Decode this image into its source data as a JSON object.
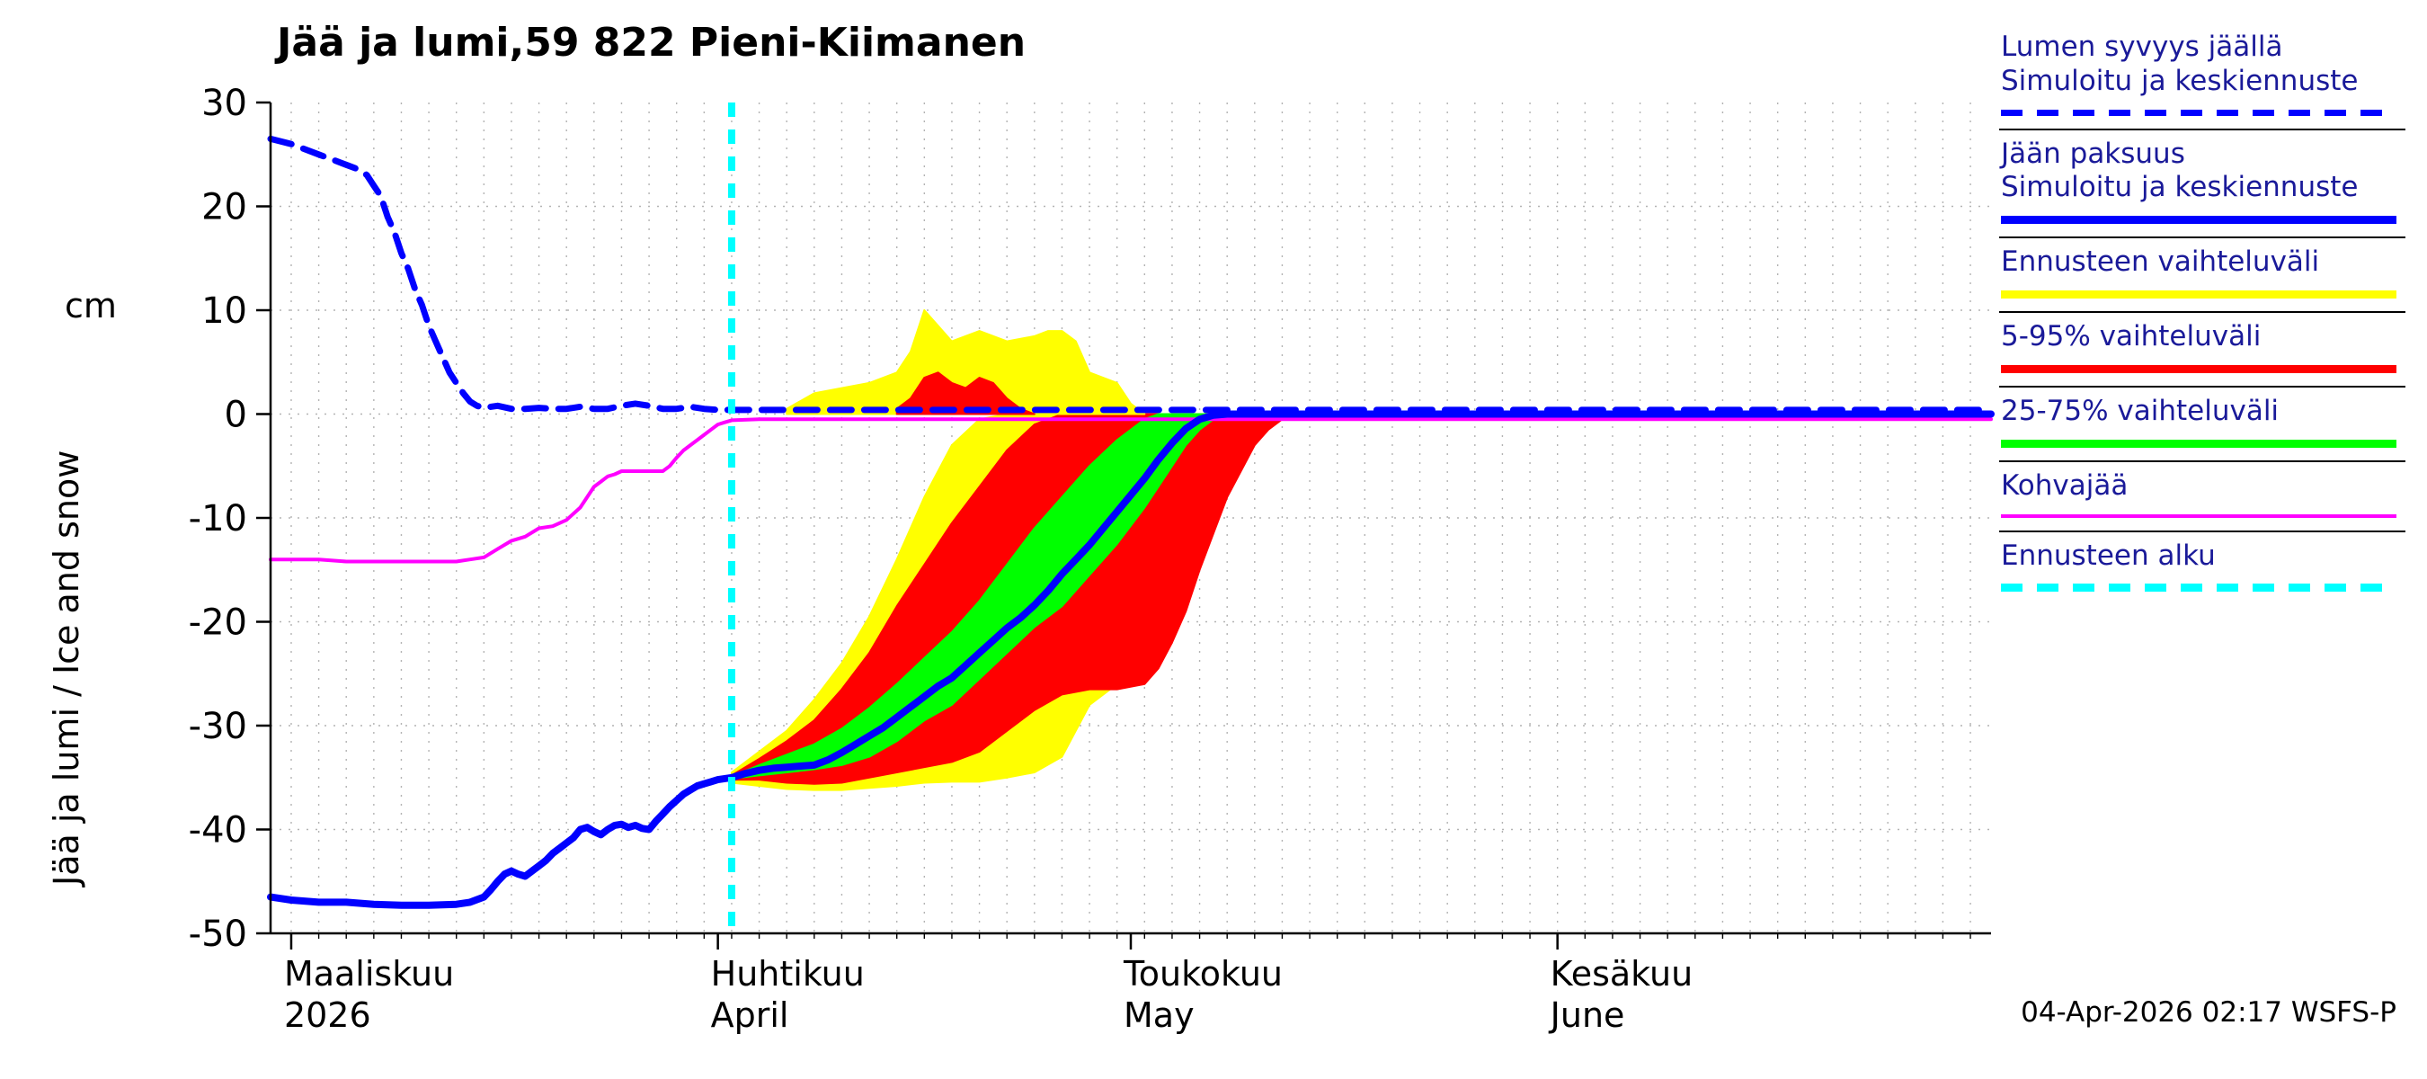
{
  "title": "Jää ja lumi,59 822 Pieni-Kiimanen",
  "timestamp": "04-Apr-2026 02:17 WSFS-P",
  "y_axis": {
    "label": "Jää ja lumi / Ice and snow",
    "unit": "cm",
    "ticks": [
      30,
      20,
      10,
      0,
      -10,
      -20,
      -30,
      -40,
      -50
    ]
  },
  "x_axis": {
    "months": [
      {
        "label": "Maaliskuu",
        "sublabel": "2026",
        "day": 0
      },
      {
        "label": "Huhtikuu",
        "sublabel": "April",
        "day": 31
      },
      {
        "label": "Toukokuu",
        "sublabel": "May",
        "day": 61
      },
      {
        "label": "Kesäkuu",
        "sublabel": "June",
        "day": 92
      }
    ]
  },
  "legend": [
    {
      "lines": [
        "Lumen syvyys jäällä",
        "Simuloitu ja keskiennuste"
      ],
      "color": "#0000ff",
      "style": "dashed",
      "thickness": 7
    },
    {
      "lines": [
        "Jään paksuus",
        "Simuloitu ja keskiennuste"
      ],
      "color": "#0000ff",
      "style": "solid",
      "thickness": 9
    },
    {
      "lines": [
        "Ennusteen vaihteluväli"
      ],
      "color": "#ffff00",
      "style": "solid",
      "thickness": 9
    },
    {
      "lines": [
        "5-95% vaihteluväli"
      ],
      "color": "#ff0000",
      "style": "solid",
      "thickness": 9
    },
    {
      "lines": [
        "25-75% vaihteluväli"
      ],
      "color": "#00ff00",
      "style": "solid",
      "thickness": 9
    },
    {
      "lines": [
        "Kohvajää"
      ],
      "color": "#ff00ff",
      "style": "solid",
      "thickness": 4
    },
    {
      "lines": [
        "Ennusteen alku"
      ],
      "color": "#00ffff",
      "style": "dashed",
      "thickness": 9
    }
  ],
  "colors": {
    "blue": "#0000ff",
    "magenta": "#ff00ff",
    "cyan": "#00ffff",
    "yellow": "#ffff00",
    "red": "#ff0000",
    "green": "#00ff00",
    "grid": "#b3b3b3",
    "axis": "#000000",
    "legend_text": "#1a1a99"
  },
  "chart_data": {
    "type": "line",
    "title": "Jää ja lumi,59 822 Pieni-Kiimanen",
    "ylabel": "Jää ja lumi / Ice and snow (cm)",
    "x_unit": "days from 2026-03-01",
    "x_range": [
      -1.5,
      123.5
    ],
    "y_range": [
      -50,
      30
    ],
    "grid": true,
    "forecast_start_day": 32,
    "series": [
      {
        "name": "snow-depth-on-ice-median",
        "color": "#0000ff",
        "style": "dashed",
        "width": 7,
        "points": [
          [
            -1.5,
            26.5
          ],
          [
            0,
            26
          ],
          [
            1,
            25.5
          ],
          [
            2,
            25
          ],
          [
            3,
            24.5
          ],
          [
            4,
            24
          ],
          [
            5,
            23.5
          ],
          [
            5.5,
            23
          ],
          [
            6,
            22
          ],
          [
            6.5,
            21
          ],
          [
            7,
            19
          ],
          [
            7.5,
            17.5
          ],
          [
            8,
            15.5
          ],
          [
            8.5,
            14
          ],
          [
            9,
            12
          ],
          [
            9.5,
            10.5
          ],
          [
            10,
            8.5
          ],
          [
            10.5,
            7
          ],
          [
            11,
            5.5
          ],
          [
            11.5,
            4
          ],
          [
            12,
            3
          ],
          [
            12.5,
            2
          ],
          [
            13,
            1.2
          ],
          [
            13.5,
            0.8
          ],
          [
            14,
            0.6
          ],
          [
            15,
            0.8
          ],
          [
            16,
            0.5
          ],
          [
            17,
            0.5
          ],
          [
            18,
            0.6
          ],
          [
            19,
            0.5
          ],
          [
            20,
            0.5
          ],
          [
            21,
            0.7
          ],
          [
            22,
            0.5
          ],
          [
            23,
            0.5
          ],
          [
            24,
            0.8
          ],
          [
            25,
            1
          ],
          [
            26,
            0.8
          ],
          [
            27,
            0.5
          ],
          [
            28,
            0.5
          ],
          [
            29,
            0.7
          ],
          [
            30,
            0.5
          ],
          [
            31,
            0.4
          ],
          [
            123.5,
            0.4
          ]
        ]
      },
      {
        "name": "kohvajaa",
        "color": "#ff00ff",
        "style": "solid",
        "width": 4,
        "points": [
          [
            -1.5,
            -14
          ],
          [
            2,
            -14
          ],
          [
            4,
            -14.2
          ],
          [
            8,
            -14.2
          ],
          [
            12,
            -14.2
          ],
          [
            13,
            -14
          ],
          [
            14,
            -13.8
          ],
          [
            15,
            -13
          ],
          [
            16,
            -12.2
          ],
          [
            17,
            -11.8
          ],
          [
            18,
            -11
          ],
          [
            19,
            -10.8
          ],
          [
            20,
            -10.2
          ],
          [
            21,
            -9
          ],
          [
            21.5,
            -8
          ],
          [
            22,
            -7
          ],
          [
            22.5,
            -6.5
          ],
          [
            23,
            -6
          ],
          [
            23.5,
            -5.8
          ],
          [
            24,
            -5.5
          ],
          [
            26,
            -5.5
          ],
          [
            27,
            -5.5
          ],
          [
            27.5,
            -5
          ],
          [
            28,
            -4.2
          ],
          [
            28.5,
            -3.5
          ],
          [
            29,
            -3
          ],
          [
            29.5,
            -2.5
          ],
          [
            30,
            -2
          ],
          [
            30.5,
            -1.5
          ],
          [
            31,
            -1
          ],
          [
            31.5,
            -0.8
          ],
          [
            32,
            -0.6
          ],
          [
            34,
            -0.5
          ],
          [
            123.5,
            -0.5
          ]
        ]
      },
      {
        "name": "ice-thickness-simulated",
        "color": "#0000ff",
        "style": "solid",
        "width": 8,
        "points": [
          [
            -1.5,
            -46.5
          ],
          [
            0,
            -46.8
          ],
          [
            2,
            -47
          ],
          [
            4,
            -47
          ],
          [
            6,
            -47.2
          ],
          [
            8,
            -47.3
          ],
          [
            10,
            -47.3
          ],
          [
            12,
            -47.2
          ],
          [
            13,
            -47
          ],
          [
            14,
            -46.5
          ],
          [
            14.5,
            -45.8
          ],
          [
            15,
            -45
          ],
          [
            15.5,
            -44.3
          ],
          [
            16,
            -44
          ],
          [
            16.5,
            -44.3
          ],
          [
            17,
            -44.5
          ],
          [
            17.5,
            -44
          ],
          [
            18,
            -43.5
          ],
          [
            18.5,
            -43
          ],
          [
            19,
            -42.3
          ],
          [
            19.5,
            -41.8
          ],
          [
            20,
            -41.3
          ],
          [
            20.5,
            -40.8
          ],
          [
            21,
            -40
          ],
          [
            21.5,
            -39.8
          ],
          [
            22,
            -40.2
          ],
          [
            22.5,
            -40.5
          ],
          [
            23,
            -40
          ],
          [
            23.5,
            -39.6
          ],
          [
            24,
            -39.5
          ],
          [
            24.5,
            -39.8
          ],
          [
            25,
            -39.6
          ],
          [
            25.5,
            -39.9
          ],
          [
            26,
            -40
          ],
          [
            26.5,
            -39.2
          ],
          [
            27,
            -38.5
          ],
          [
            27.5,
            -37.8
          ],
          [
            28,
            -37.2
          ],
          [
            28.5,
            -36.6
          ],
          [
            29,
            -36.2
          ],
          [
            29.5,
            -35.8
          ],
          [
            30,
            -35.6
          ],
          [
            30.5,
            -35.4
          ],
          [
            31,
            -35.2
          ],
          [
            32,
            -35
          ]
        ]
      },
      {
        "name": "ice-thickness-forecast-median",
        "color": "#0000ff",
        "style": "solid",
        "width": 8,
        "points": [
          [
            32,
            -35
          ],
          [
            33,
            -34.6
          ],
          [
            34,
            -34.3
          ],
          [
            35,
            -34.1
          ],
          [
            36,
            -34
          ],
          [
            37,
            -33.9
          ],
          [
            38,
            -33.8
          ],
          [
            39,
            -33.3
          ],
          [
            40,
            -32.6
          ],
          [
            41,
            -31.8
          ],
          [
            42,
            -31
          ],
          [
            43,
            -30.2
          ],
          [
            44,
            -29.2
          ],
          [
            45,
            -28.2
          ],
          [
            46,
            -27.2
          ],
          [
            47,
            -26.2
          ],
          [
            48,
            -25.4
          ],
          [
            49,
            -24.2
          ],
          [
            50,
            -23
          ],
          [
            51,
            -21.8
          ],
          [
            52,
            -20.6
          ],
          [
            53,
            -19.6
          ],
          [
            54,
            -18.4
          ],
          [
            55,
            -17
          ],
          [
            56,
            -15.4
          ],
          [
            57,
            -14
          ],
          [
            58,
            -12.6
          ],
          [
            59,
            -11
          ],
          [
            60,
            -9.4
          ],
          [
            61,
            -7.8
          ],
          [
            62,
            -6.2
          ],
          [
            63,
            -4.4
          ],
          [
            64,
            -2.8
          ],
          [
            65,
            -1.4
          ],
          [
            66,
            -0.5
          ],
          [
            67,
            -0.1
          ],
          [
            68,
            0
          ],
          [
            123.5,
            0
          ]
        ]
      }
    ],
    "bands": [
      {
        "name": "forecast-range-ice",
        "color": "#ffff00",
        "x": [
          32,
          34,
          36,
          38,
          40,
          42,
          44,
          46,
          48,
          50,
          52,
          54,
          56,
          58,
          60,
          62,
          63,
          64,
          65,
          66,
          67,
          68,
          69,
          70,
          71,
          72,
          73
        ],
        "upper": [
          -34.5,
          -32.5,
          -30.5,
          -27.5,
          -24,
          -19.5,
          -14,
          -8,
          -3,
          -0.5,
          0,
          0,
          0,
          0,
          0,
          0,
          0,
          0,
          0,
          0,
          0,
          0,
          0,
          0,
          0,
          0,
          0
        ],
        "lower": [
          -35.5,
          -35.8,
          -36.1,
          -36.2,
          -36.2,
          -36,
          -35.8,
          -35.5,
          -35.4,
          -35.4,
          -35,
          -34.5,
          -33,
          -28,
          -26,
          -25,
          -23,
          -20,
          -16,
          -11,
          -6.5,
          -3,
          -1,
          0,
          0,
          0,
          0
        ]
      },
      {
        "name": "p5-95-ice",
        "color": "#ff0000",
        "x": [
          32,
          34,
          36,
          38,
          40,
          42,
          44,
          46,
          48,
          50,
          52,
          54,
          56,
          58,
          60,
          62,
          63,
          64,
          65,
          66,
          67,
          68,
          69,
          70,
          71,
          72,
          73
        ],
        "upper": [
          -34.8,
          -33.2,
          -31.5,
          -29.5,
          -26.5,
          -23,
          -18.5,
          -14.5,
          -10.5,
          -7,
          -3.5,
          -1,
          0,
          0,
          0,
          0,
          0,
          0,
          0,
          0,
          0,
          0,
          0,
          0,
          0,
          0,
          0
        ],
        "lower": [
          -35.2,
          -35.2,
          -35.5,
          -35.6,
          -35.5,
          -35,
          -34.5,
          -34,
          -33.5,
          -32.5,
          -30.5,
          -28.5,
          -27,
          -26.5,
          -26.5,
          -26,
          -24.5,
          -22,
          -19,
          -15,
          -11.5,
          -8,
          -5.5,
          -3,
          -1.5,
          -0.5,
          0
        ]
      },
      {
        "name": "p25-75-ice",
        "color": "#00ff00",
        "x": [
          32,
          34,
          36,
          38,
          40,
          42,
          44,
          46,
          48,
          50,
          52,
          54,
          56,
          58,
          60,
          62,
          63,
          64,
          65,
          66,
          67,
          68,
          69,
          70,
          71,
          72,
          73
        ],
        "upper": [
          -34.9,
          -33.8,
          -32.8,
          -31.8,
          -30.3,
          -28.3,
          -26,
          -23.5,
          -21,
          -18,
          -14.5,
          -11,
          -8,
          -5,
          -2.5,
          -0.5,
          0,
          0,
          0,
          0,
          0,
          0,
          0,
          0,
          0,
          0,
          0
        ],
        "lower": [
          -35.1,
          -34.8,
          -34.5,
          -34.2,
          -33.8,
          -33,
          -31.5,
          -29.5,
          -28,
          -25.5,
          -23,
          -20.5,
          -18.5,
          -15.5,
          -12.5,
          -9,
          -7,
          -5,
          -3,
          -1.5,
          -0.5,
          0,
          0,
          0,
          0,
          0,
          0
        ]
      },
      {
        "name": "forecast-range-snow",
        "color": "#ffff00",
        "x": [
          36,
          38,
          40,
          42,
          44,
          45,
          46,
          47,
          48,
          50,
          52,
          54,
          55,
          56,
          57,
          58,
          60,
          61,
          62
        ],
        "upper": [
          0.5,
          2,
          2.5,
          3,
          4,
          6,
          10,
          8.5,
          7,
          8,
          7,
          7.5,
          8,
          8,
          7,
          4,
          3,
          1,
          0
        ],
        "lower": [
          0,
          0,
          0,
          0,
          0,
          0,
          0,
          0,
          0,
          0,
          0,
          0,
          0,
          0,
          0,
          0,
          0,
          0,
          0
        ]
      },
      {
        "name": "p5-95-snow",
        "color": "#ff0000",
        "x": [
          44,
          45,
          46,
          47,
          48,
          49,
          50,
          51,
          52,
          53,
          54
        ],
        "upper": [
          0.5,
          1.5,
          3.5,
          4,
          3,
          2.5,
          3.5,
          3,
          1.5,
          0.5,
          0
        ],
        "lower": [
          0,
          0,
          0,
          0,
          0,
          0,
          0,
          0,
          0,
          0,
          0
        ]
      }
    ]
  }
}
